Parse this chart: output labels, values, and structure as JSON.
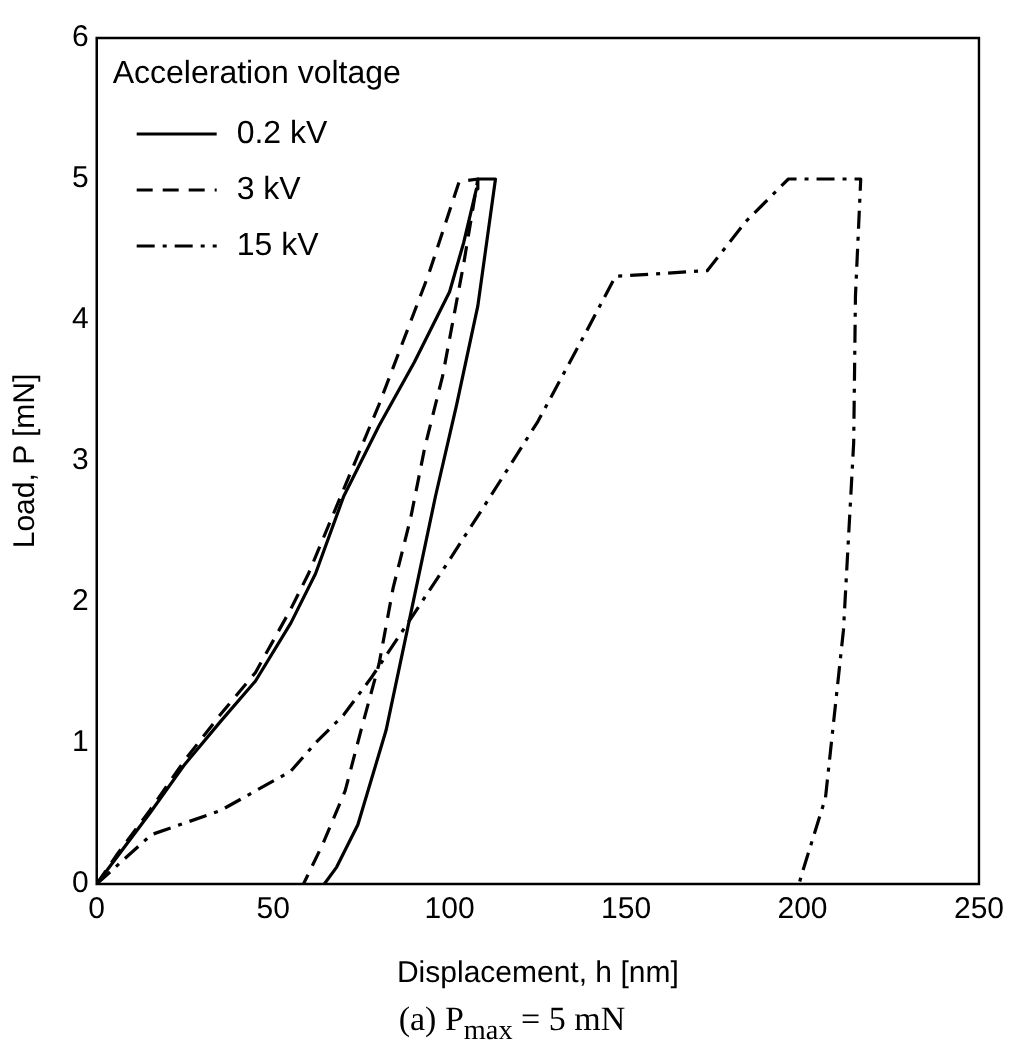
{
  "chart_data": {
    "type": "line",
    "xlabel": "Displacement, h [nm]",
    "ylabel": "Load, P [mN]",
    "legend_title": "Acceleration voltage",
    "legend": "top left",
    "grid": false,
    "marker": "none",
    "xlim": [
      0,
      250
    ],
    "xticks": [
      0,
      50,
      100,
      150,
      200,
      250
    ],
    "ylim": [
      0,
      6
    ],
    "yticks": [
      0,
      1,
      2,
      3,
      4,
      5,
      6
    ],
    "annotations": [
      "(a) P$_{max}$ = 5 mN"
    ],
    "series": [
      {
        "name": "0.2 kV",
        "color": "#000000",
        "line_style": "solid",
        "x": [
          0,
          5.7,
          15,
          25,
          35,
          45,
          55,
          62,
          70,
          80,
          90,
          100,
          104,
          107.6,
          108,
          113,
          108,
          102,
          96,
          88,
          82,
          74,
          68,
          64.5
        ],
        "values": [
          0,
          0.19,
          0.5,
          0.85,
          1.15,
          1.44,
          1.85,
          2.2,
          2.75,
          3.25,
          3.7,
          4.2,
          4.55,
          4.93,
          5,
          5,
          4.1,
          3.4,
          2.75,
          1.8,
          1.09,
          0.42,
          0.12,
          0
        ]
      },
      {
        "name": "3 kV",
        "color": "#000000",
        "line_style": "dashed",
        "x": [
          0,
          5.5,
          15,
          25,
          35,
          45,
          55,
          60,
          70,
          80,
          94,
          102.7,
          108,
          104,
          98,
          93,
          89,
          84,
          80,
          75,
          70.4,
          64,
          58.6
        ],
        "values": [
          0,
          0.2,
          0.52,
          0.88,
          1.2,
          1.5,
          1.95,
          2.2,
          2.8,
          3.4,
          4.32,
          4.98,
          5,
          4.4,
          3.6,
          3.1,
          2.6,
          2.1,
          1.56,
          1.1,
          0.66,
          0.28,
          0
        ]
      },
      {
        "name": "15 kV",
        "color": "#000000",
        "line_style": "dashdot",
        "x": [
          0,
          15.5,
          35,
          55,
          62,
          70,
          78,
          90,
          100,
          111.6,
          125,
          139,
          147,
          173,
          184,
          196,
          216.5,
          215,
          214.5,
          211.6,
          206.5,
          199.8,
          199
        ],
        "values": [
          0,
          0.35,
          0.52,
          0.8,
          1.0,
          1.2,
          1.47,
          1.92,
          2.3,
          2.75,
          3.28,
          3.93,
          4.31,
          4.35,
          4.7,
          5,
          5,
          4.17,
          3.13,
          1.8,
          0.61,
          0.07,
          0
        ]
      }
    ]
  }
}
